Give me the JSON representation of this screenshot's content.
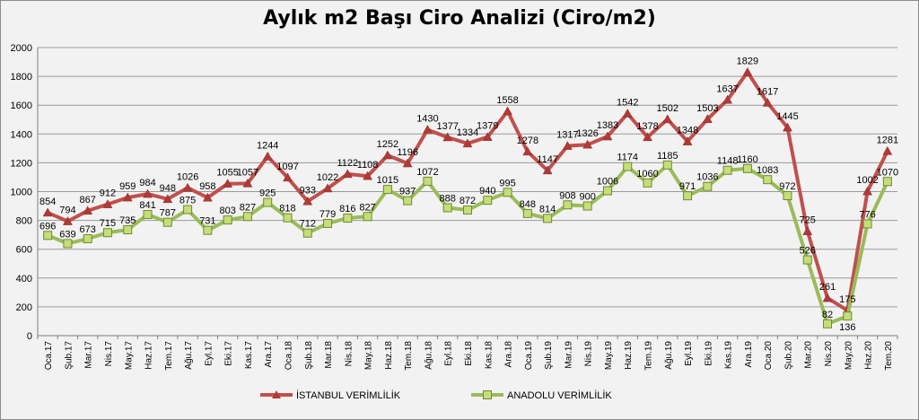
{
  "chart_data": {
    "type": "line",
    "title": "Aylık m2 Başı Ciro Analizi (Ciro/m2)",
    "ylim": [
      0,
      2000
    ],
    "yticks": [
      0,
      200,
      400,
      600,
      800,
      1000,
      1200,
      1400,
      1600,
      1800,
      2000
    ],
    "grid": true,
    "legend_position": "bottom",
    "categories": [
      "Oca.17",
      "Şub.17",
      "Mar.17",
      "Nis.17",
      "May.17",
      "Haz.17",
      "Tem.17",
      "Ağu.17",
      "Eyl.17",
      "Eki.17",
      "Kas.17",
      "Ara.17",
      "Oca.18",
      "Şub.18",
      "Mar.18",
      "Nis.18",
      "May.18",
      "Haz.18",
      "Tem.18",
      "Ağu.18",
      "Eyl.18",
      "Eki.18",
      "Kas.18",
      "Ara.18",
      "Oca.19",
      "Şub.19",
      "Mar.19",
      "Nis.19",
      "May.19",
      "Haz.19",
      "Tem.19",
      "Ağu.19",
      "Eyl.19",
      "Eki.19",
      "Kas.19",
      "Ara.19",
      "Oca.20",
      "Şub.20",
      "Mar.20",
      "Nis.20",
      "May.20",
      "Haz.20",
      "Tem.20"
    ],
    "series": [
      {
        "name": "İSTANBUL VERİMLİLİK",
        "color": "#c0504d",
        "marker": "triangle",
        "values": [
          854,
          794,
          867,
          912,
          959,
          984,
          948,
          1026,
          958,
          1055,
          1057,
          1244,
          1097,
          933,
          1022,
          1122,
          1108,
          1252,
          1196,
          1430,
          1377,
          1334,
          1379,
          1558,
          1278,
          1147,
          1317,
          1326,
          1383,
          1542,
          1378,
          1502,
          1348,
          1503,
          1637,
          1829,
          1617,
          1445,
          725,
          261,
          175,
          1002,
          1281
        ]
      },
      {
        "name": "ANADOLU VERİMLİLİK",
        "color": "#9bbb59",
        "marker": "square",
        "values": [
          696,
          639,
          673,
          715,
          735,
          841,
          787,
          875,
          731,
          803,
          827,
          925,
          818,
          712,
          779,
          816,
          827,
          1015,
          937,
          1072,
          888,
          872,
          940,
          995,
          848,
          814,
          908,
          900,
          1006,
          1174,
          1060,
          1185,
          971,
          1036,
          1148,
          1160,
          1083,
          972,
          526,
          82,
          136,
          776,
          1070
        ]
      }
    ]
  }
}
